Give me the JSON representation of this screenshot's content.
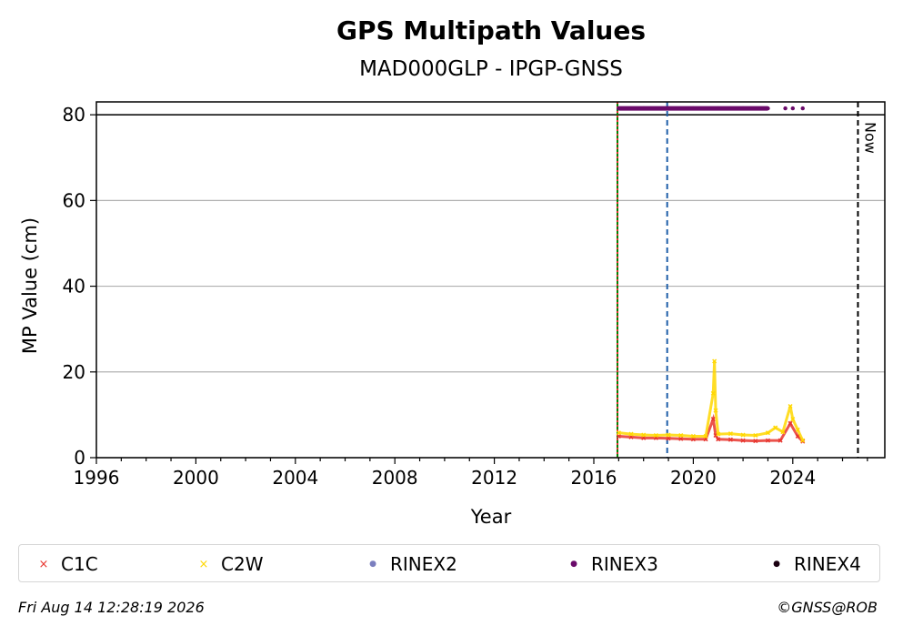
{
  "chart_data": {
    "type": "scatter",
    "title": "GPS Multipath Values",
    "subtitle": "MAD000GLP - IPGP-GNSS",
    "xlabel": "Year",
    "ylabel": "MP Value (cm)",
    "xlim": [
      1996,
      2027.7
    ],
    "ylim": [
      0,
      83
    ],
    "xticks": [
      "1996",
      "2000",
      "2004",
      "2008",
      "2012",
      "2016",
      "2020",
      "2024"
    ],
    "yticks": [
      "0",
      "20",
      "40",
      "60",
      "80"
    ],
    "grid": "horizontal",
    "reference_line": 80,
    "vlines": [
      {
        "x": 2016.95,
        "color": "#008000",
        "style": "solid"
      },
      {
        "x": 2016.95,
        "color": "#e03030",
        "style": "dotted"
      },
      {
        "x": 2018.95,
        "color": "#1f5fa8",
        "style": "dashed"
      },
      {
        "x": 2026.62,
        "color": "#000000",
        "style": "dashed",
        "label": "Now"
      }
    ],
    "series": [
      {
        "name": "C1C",
        "marker": "x",
        "color": "#e8352e",
        "x": [
          2017.0,
          2017.5,
          2018.0,
          2018.5,
          2019.0,
          2019.5,
          2020.0,
          2020.5,
          2020.8,
          2020.9,
          2021.0,
          2021.5,
          2022.0,
          2022.5,
          2023.0,
          2023.5,
          2023.9,
          2024.2,
          2024.4
        ],
        "y": [
          5.0,
          4.8,
          4.6,
          4.6,
          4.5,
          4.4,
          4.3,
          4.3,
          9.0,
          5.2,
          4.3,
          4.2,
          4.0,
          3.9,
          4.0,
          4.0,
          8.0,
          5.0,
          3.8
        ]
      },
      {
        "name": "C2W",
        "marker": "x",
        "color": "#ffd700",
        "x": [
          2017.0,
          2017.5,
          2018.0,
          2018.5,
          2019.0,
          2019.5,
          2020.0,
          2020.5,
          2020.8,
          2020.85,
          2020.9,
          2021.0,
          2021.5,
          2022.0,
          2022.5,
          2023.0,
          2023.3,
          2023.6,
          2023.9,
          2024.0,
          2024.2,
          2024.4
        ],
        "y": [
          5.8,
          5.5,
          5.3,
          5.2,
          5.3,
          5.2,
          5.0,
          5.0,
          15.0,
          22.5,
          11.0,
          5.5,
          5.6,
          5.3,
          5.2,
          5.8,
          7.0,
          6.0,
          12.0,
          9.0,
          6.5,
          4.0
        ]
      },
      {
        "name": "RINEX2",
        "marker": "dot",
        "color": "#7b7fbf",
        "x": [],
        "y": []
      },
      {
        "name": "RINEX3",
        "marker": "dot",
        "color": "#6a0a6a",
        "x": [
          2017.0,
          2018.0,
          2019.0,
          2020.0,
          2021.0,
          2022.0,
          2023.0,
          2023.7,
          2024.0,
          2024.4
        ],
        "y": [
          81.5,
          81.5,
          81.5,
          81.5,
          81.5,
          81.5,
          81.5,
          81.5,
          81.5,
          81.5
        ]
      },
      {
        "name": "RINEX4",
        "marker": "dot",
        "color": "#1a0010",
        "x": [],
        "y": []
      }
    ]
  },
  "legend": [
    {
      "label": "C1C",
      "marker": "×",
      "color": "#e8352e"
    },
    {
      "label": "C2W",
      "marker": "×",
      "color": "#ffd700"
    },
    {
      "label": "RINEX2",
      "marker": "●",
      "color": "#7b7fbf"
    },
    {
      "label": "RINEX3",
      "marker": "●",
      "color": "#6a0a6a"
    },
    {
      "label": "RINEX4",
      "marker": "●",
      "color": "#1a0010"
    }
  ],
  "footer": {
    "timestamp": "Fri Aug 14 12:28:19 2026",
    "credit": "©GNSS@ROB"
  }
}
